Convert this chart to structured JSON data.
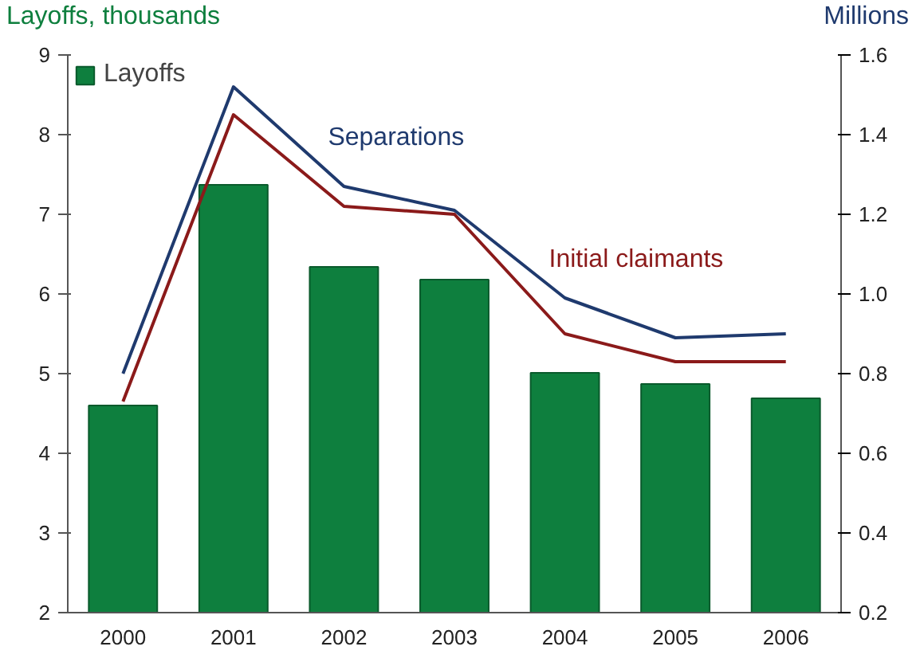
{
  "chart_data": {
    "type": "bar",
    "categories": [
      "2000",
      "2001",
      "2002",
      "2003",
      "2004",
      "2005",
      "2006"
    ],
    "ylabel": "Layoffs, thousands",
    "y2label": "Millions",
    "series": [
      {
        "name": "Layoffs",
        "color": "#0e7f3e",
        "values": [
          4.6,
          7.37,
          6.34,
          6.18,
          5.01,
          4.87,
          4.69
        ]
      },
      {
        "name": "Separations",
        "type": "line",
        "axis": "y2",
        "color": "#1f3a6e",
        "values": [
          0.8,
          1.52,
          1.27,
          1.21,
          0.99,
          0.89,
          0.9
        ]
      },
      {
        "name": "Initial claimants",
        "type": "line",
        "axis": "y2",
        "color": "#8b1a1a",
        "values": [
          0.73,
          1.45,
          1.22,
          1.2,
          0.9,
          0.83,
          0.83
        ]
      }
    ],
    "ylim": [
      2,
      9
    ],
    "yticks": [
      2,
      3,
      4,
      5,
      6,
      7,
      8,
      9
    ],
    "y2lim": [
      0.2,
      1.6
    ],
    "y2ticks": [
      {
        "value": 0.2,
        "label": "0.2"
      },
      {
        "value": 0.4,
        "label": "0.4"
      },
      {
        "value": 0.6,
        "label": "0.6"
      },
      {
        "value": 0.8,
        "label": "0.8"
      },
      {
        "value": 1.0,
        "label": "1.0"
      },
      {
        "value": 1.2,
        "label": "1.2"
      },
      {
        "value": 1.4,
        "label": "1.4"
      },
      {
        "value": 1.6,
        "label": "1.6"
      }
    ],
    "legend": "top left",
    "grid": false
  }
}
